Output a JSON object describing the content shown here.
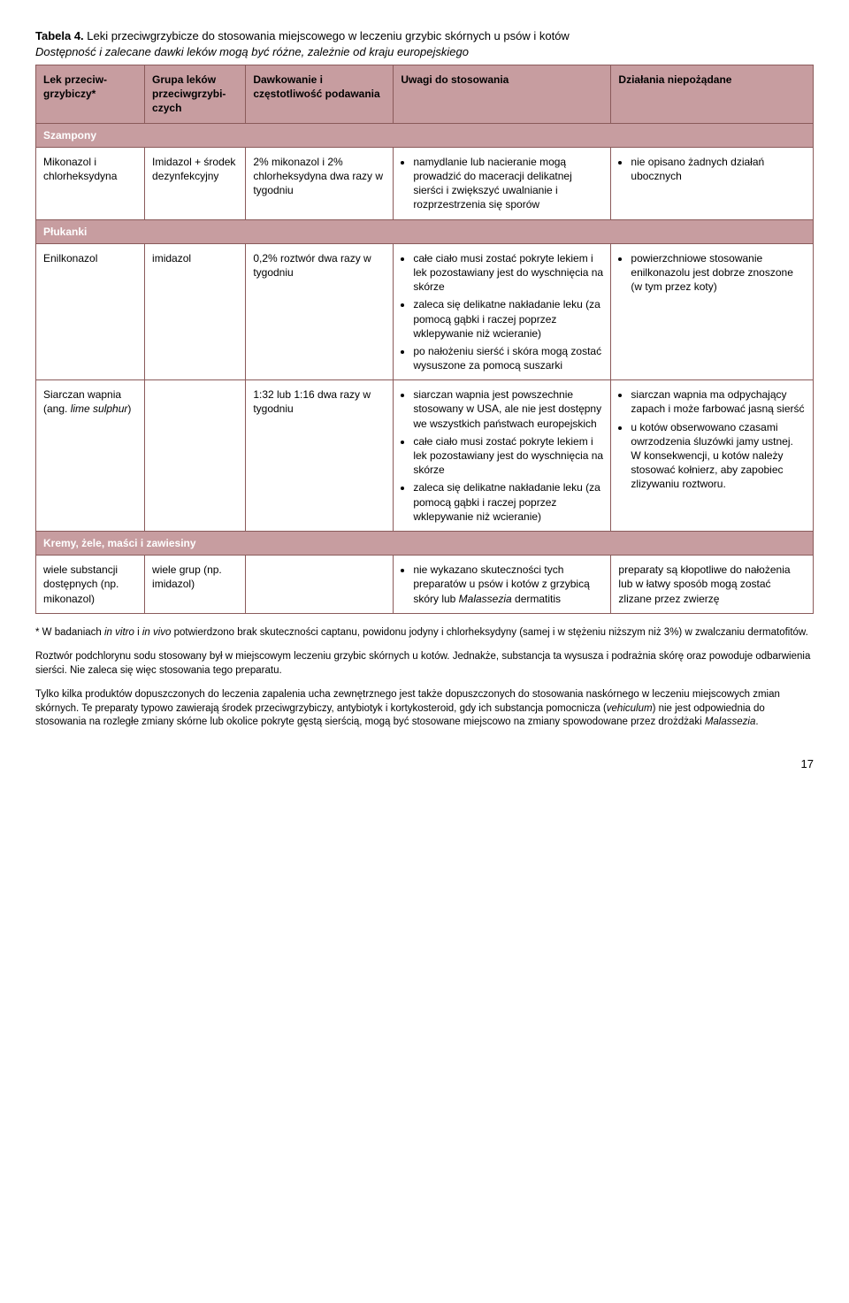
{
  "caption": {
    "label": "Tabela 4.",
    "title": " Leki przeciwgrzybicze do stosowania miejscowego w leczeniu grzybic skórnych u psów i kotów",
    "subtitle": "Dostępność i zalecane dawki leków mogą być różne, zależnie od kraju europejskiego"
  },
  "headers": {
    "c1": "Lek przeciw­grzybiczy*",
    "c2": "Grupa leków przeciw­grzybi­czych",
    "c3": "Dawkowanie i częstotliwość podawania",
    "c4": "Uwagi do stosowania",
    "c5": "Działania niepożądane"
  },
  "sections": {
    "szampony": "Szampony",
    "plukanki": "Płukanki",
    "kremy": "Kremy, żele, maści i zawiesiny"
  },
  "rows": {
    "r1": {
      "c1": "Mikonazol i chlorheksy­dyna",
      "c2": "Imidazol + środek dezynfek­cyjny",
      "c3": "2% mikonazol i 2% chlorheksydyna dwa razy w tygodniu",
      "c4": [
        "namydlanie lub nacieranie mogą prowadzić do maceracji delikatnej sierści i zwiększyć uwalnianie i rozprzestrzenia się sporów"
      ],
      "c5": [
        "nie opisano żadnych działań ubocznych"
      ]
    },
    "r2": {
      "c1": "Enilkonazol",
      "c2": "imidazol",
      "c3": "0,2% roztwór dwa razy w tygodniu",
      "c4": [
        "całe ciało musi zostać pokryte lekiem i lek pozostawiany jest do wyschnięcia na skórze",
        "zaleca się delikatne nakładanie leku (za pomocą gąbki i raczej poprzez wklepywanie niż wcieranie)",
        "po nałożeniu sierść i skóra mogą zostać wysuszone za pomocą suszarki"
      ],
      "c5": [
        "powierzchniowe stosowanie enilkonazolu jest dobrze znoszone (w tym przez koty)"
      ]
    },
    "r3": {
      "c1a": "Siarczan wapnia (ang. ",
      "c1b": "lime sulphur",
      "c1c": ")",
      "c2": "",
      "c3": "1:32 lub 1:16 dwa razy w tygodniu",
      "c4": [
        "siarczan wapnia jest powszechnie stosowany w USA, ale nie jest dostępny we wszystkich państwach europejskich",
        "całe ciało musi zostać pokryte lekiem i lek pozostawiany jest do wyschnięcia na skórze",
        "zaleca się delikatne nakładanie leku (za pomocą gąbki i raczej poprzez wklepywanie niż wcieranie)"
      ],
      "c5": [
        "siarczan wapnia ma odpychający zapach i może farbować jasną sierść",
        "u kotów obserwowano czasami owrzodzenia śluzówki jamy ustnej. W konsekwencji, u kotów należy stosować kołnierz, aby zapobiec zlizywaniu roztworu."
      ]
    },
    "r4": {
      "c1": "wiele substancji dostępnych (np. mikonazol)",
      "c2": "wiele grup (np. imidazol)",
      "c3": "",
      "c4a": "nie wykazano skuteczności tych preparatów u psów i kotów z grzybicą skóry lub ",
      "c4b": "Malassezia",
      "c4c": " dermatitis",
      "c5": "preparaty są kłopotliwe do nałożenia lub w łatwy sposób mogą zostać zlizane przez zwierzę"
    }
  },
  "footnotes": {
    "f1a": "* W badaniach ",
    "f1b": "in vitro",
    "f1c": " i ",
    "f1d": "in vivo",
    "f1e": " potwierdzono brak skuteczności captanu, powidonu jodyny i chlorheksydyny (samej i w stężeniu niższym niż 3%) w zwalczaniu dermatofitów.",
    "f2": "Roztwór podchlorynu sodu stosowany był w miejscowym leczeniu grzybic skórnych u kotów. Jednakże, substancja ta wysusza i podrażnia skórę oraz powoduje odbarwienia sierści. Nie zaleca się więc stosowania tego preparatu.",
    "f3a": "Tylko kilka produktów dopuszczonych do leczenia zapalenia ucha zewnętrznego jest także dopuszczonych do stosowania naskórnego w leczeniu miejscowych zmian skórnych. Te preparaty typowo zawierają środek przeciwgrzybiczy, antybiotyk i kortykosteroid, gdy ich substancja pomocnicza (",
    "f3b": "vehiculum",
    "f3c": ") nie jest odpowiednia do stosowania na rozległe zmiany skórne lub okolice pokryte gęstą sierścią, mogą być stosowane miejscowo na zmiany spowodowane przez drożdżaki ",
    "f3d": "Malassezia",
    "f3e": "."
  },
  "page_number": "17"
}
